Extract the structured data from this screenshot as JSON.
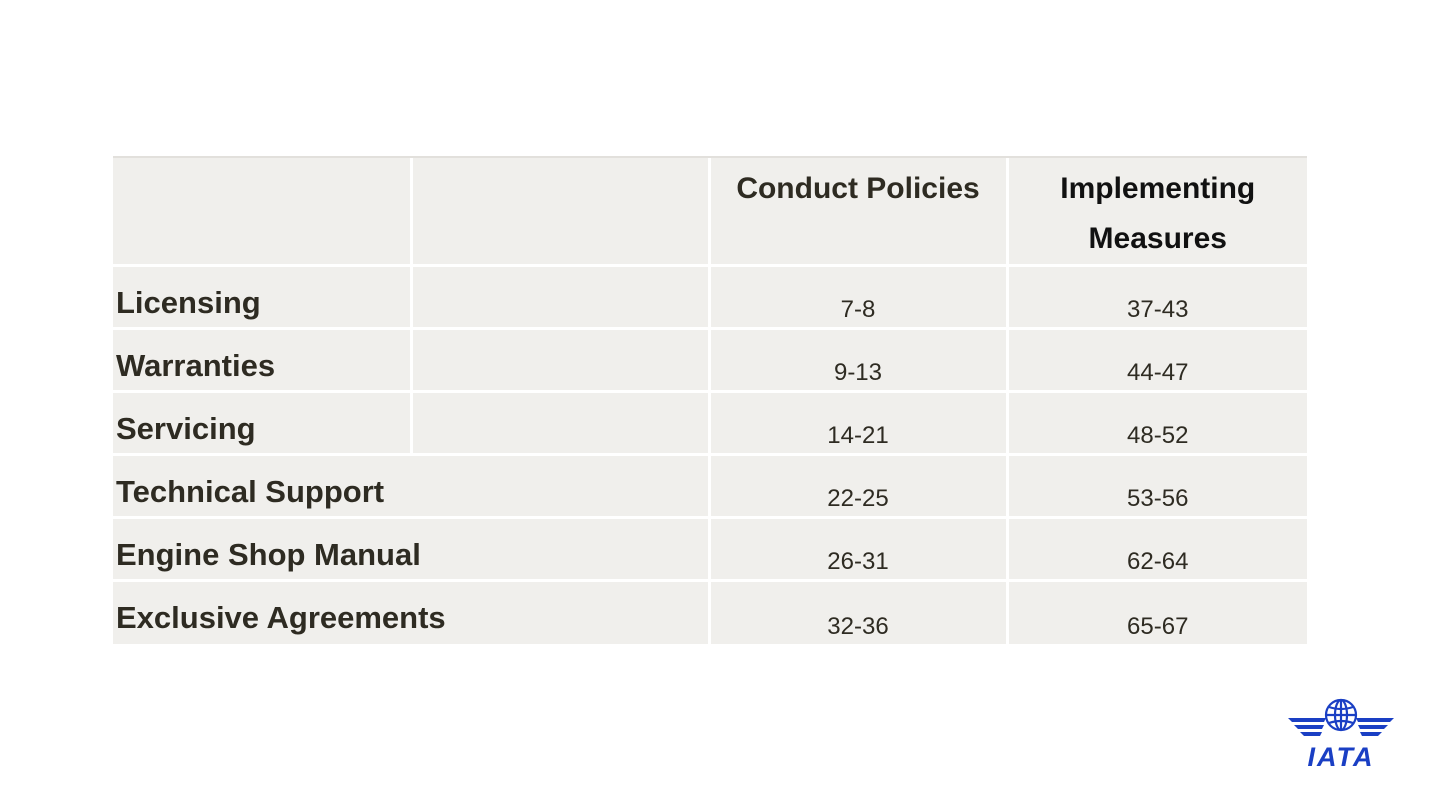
{
  "table": {
    "headers": [
      "",
      "",
      "Conduct Policies",
      "Implementing Measures"
    ],
    "rows": [
      {
        "label": "Licensing",
        "conduct": "7-8",
        "implementing": "37-43"
      },
      {
        "label": "Warranties",
        "conduct": "9-13",
        "implementing": "44-47"
      },
      {
        "label": "Servicing",
        "conduct": "14-21",
        "implementing": "48-52"
      },
      {
        "label": "Technical Support",
        "conduct": "22-25",
        "implementing": "53-56"
      },
      {
        "label": "Engine Shop Manual",
        "conduct": "26-31",
        "implementing": "62-64"
      },
      {
        "label": "Exclusive Agreements",
        "conduct": "32-36",
        "implementing": "65-67"
      }
    ]
  },
  "logo": {
    "text": "IATA",
    "color": "#1a3fc4",
    "icon": "globe-wings-icon"
  },
  "colors": {
    "cell_background": "#f0efec",
    "text": "#2e2b22"
  }
}
